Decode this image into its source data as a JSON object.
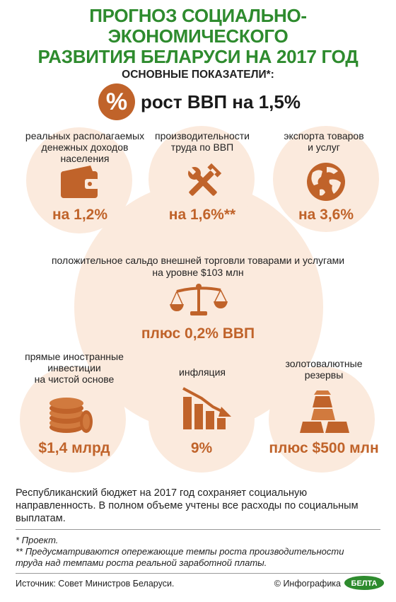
{
  "title": {
    "line1": "ПРОГНОЗ СОЦИАЛЬНО-ЭКОНОМИЧЕСКОГО",
    "line2": "РАЗВИТИЯ БЕЛАРУСИ НА 2017 ГОД"
  },
  "subtitle": "ОСНОВНЫЕ ПОКАЗАТЕЛИ*:",
  "gdp": {
    "badge": "%",
    "text": "рост ВВП на 1,5%"
  },
  "items": [
    {
      "label_lines": [
        "реальных располагаемых",
        "денежных доходов",
        "населения"
      ],
      "value": "на 1,2%",
      "icon": "wallet-icon"
    },
    {
      "label_lines": [
        "производительности",
        "труда по ВВП"
      ],
      "value": "на 1,6%**",
      "icon": "tools-icon"
    },
    {
      "label_lines": [
        "экспорта товаров",
        "и услуг"
      ],
      "value": "на 3,6%",
      "icon": "globe-icon"
    }
  ],
  "trade": {
    "label_lines": [
      "положительное сальдо внешней торговли товарами и услугами",
      "на уровне $103 млн"
    ],
    "value": "плюс 0,2% ВВП",
    "icon": "scales-icon"
  },
  "bottom_items": [
    {
      "label_lines": [
        "прямые иностранные",
        "инвестиции",
        "на чистой основе"
      ],
      "value": "$1,4 млрд",
      "icon": "coins-icon"
    },
    {
      "label_lines": [
        "инфляция"
      ],
      "value": "9%",
      "icon": "declining-chart-icon"
    },
    {
      "label_lines": [
        "золотовалютные",
        "резервы"
      ],
      "value": "плюс $500 млн",
      "icon": "gold-bars-icon"
    }
  ],
  "body": {
    "line1": "Республиканский бюджет на 2017 год сохраняет социальную",
    "line2": "направленность. В полном объеме учтены все расходы по социальным",
    "line3": "выплатам."
  },
  "notes": {
    "note1": "* Проект.",
    "note2_line1": "** Предусматриваются опережающие темпы роста производительности",
    "note2_line2": "труда над темпами роста реальной заработной платы."
  },
  "footer": {
    "source": "Источник: Совет Министров Беларуси.",
    "credit": "© Инфографика",
    "logo_text": "БЕЛТА"
  },
  "colors": {
    "title_green": "#2e8b2e",
    "accent_orange": "#c0632a",
    "circle_bg": "#fbeadd",
    "logo_green": "#2e8b2e"
  }
}
